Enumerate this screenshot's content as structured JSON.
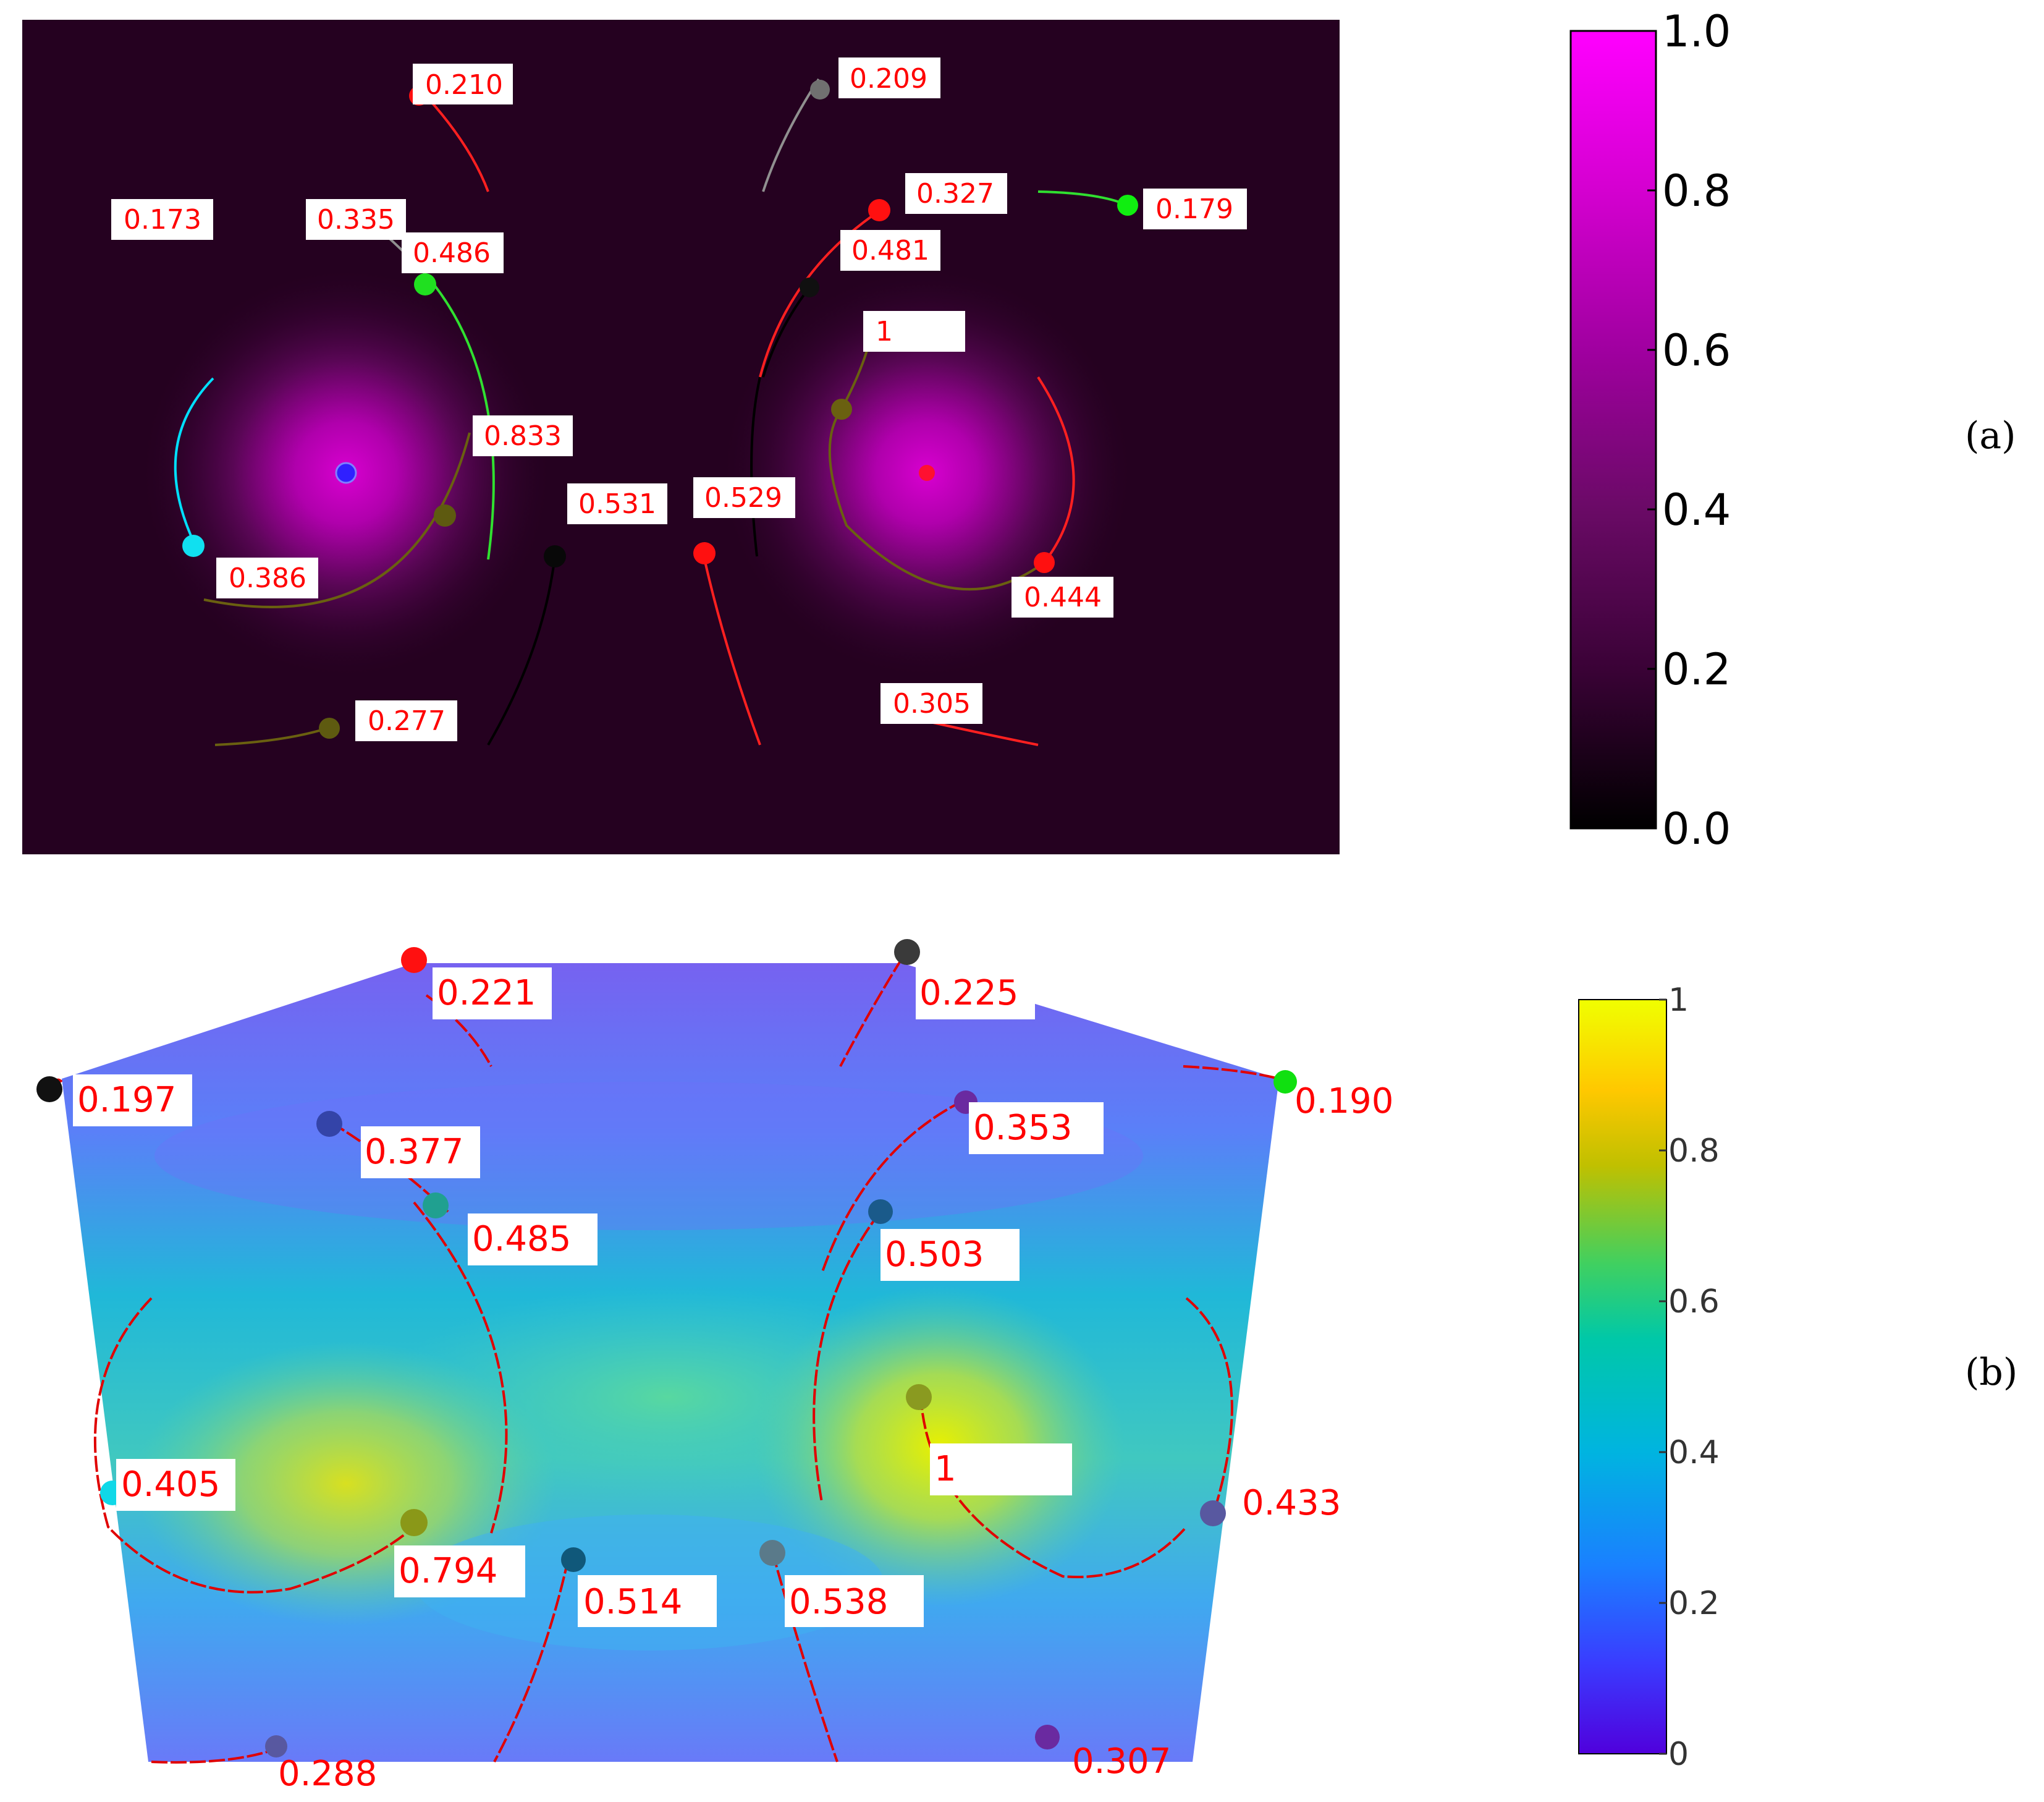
{
  "panel_a": {
    "letter": "(a)",
    "background": "#2a0226",
    "glow_color": "#c800c0",
    "colorbar": {
      "ticks": [
        "0.0",
        "0.2",
        "0.4",
        "0.6",
        "0.8",
        "1.0"
      ],
      "gradient": [
        "#000000",
        "#3a0236",
        "#7a0a78",
        "#b400b0",
        "#e000dc",
        "#ff00ff"
      ]
    },
    "sensor_labels": [
      "0.210",
      "0.209",
      "0.173",
      "0.335",
      "0.486",
      "0.327",
      "0.179",
      "0.481",
      "1",
      "0.833",
      "0.531",
      "0.529",
      "0.386",
      "0.444",
      "0.277",
      "0.305"
    ],
    "sensor_colors": [
      "red",
      "gray",
      "cyan",
      "green",
      "olive",
      "black",
      "blue"
    ]
  },
  "panel_b": {
    "letter": "(b)",
    "colorbar": {
      "ticks": [
        "0",
        "0.2",
        "0.4",
        "0.6",
        "0.8",
        "1"
      ],
      "gradient": [
        "#5a00e8",
        "#3c78ff",
        "#00b4d8",
        "#00cc88",
        "#ffb000",
        "#f0ff00"
      ]
    },
    "sensor_labels": [
      "0.221",
      "0.225",
      "0.197",
      "0.190",
      "0.377",
      "0.353",
      "0.485",
      "0.503",
      "0.405",
      "1",
      "0.433",
      "0.794",
      "0.514",
      "0.538",
      "0.288",
      "0.307"
    ],
    "trace_color": "#e00000"
  }
}
